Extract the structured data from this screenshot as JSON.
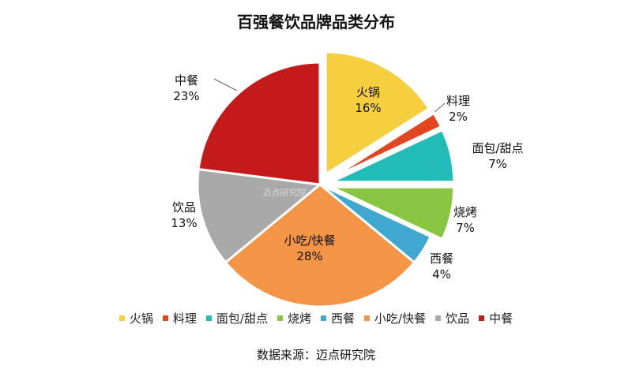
{
  "chart_data": {
    "type": "pie",
    "title": "百强餐饮品牌品类分布",
    "categories": [
      "火锅",
      "料理",
      "面包/甜点",
      "烧烤",
      "西餐",
      "小吃/快餐",
      "饮品",
      "中餐"
    ],
    "values": [
      16,
      2,
      7,
      7,
      4,
      28,
      13,
      23
    ],
    "labels": [
      "16%",
      "2%",
      "7%",
      "7%",
      "4%",
      "28%",
      "13%",
      "23%"
    ],
    "exploded": [
      "火锅",
      "料理",
      "面包/甜点",
      "烧烤"
    ],
    "colors": [
      "#F5CF3D",
      "#E2461F",
      "#21BCB8",
      "#88C540",
      "#3FA8D0",
      "#F39447",
      "#A9A9A9",
      "#C51A1A"
    ],
    "legend_position": "bottom"
  },
  "source": "数据来源：迈点研究院",
  "watermark_text": "迈点研究院"
}
